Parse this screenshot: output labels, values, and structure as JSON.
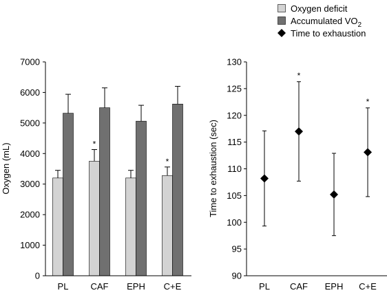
{
  "legend": {
    "items": [
      {
        "label": "Oxygen deficit",
        "marker": "light-gray-square",
        "color": "#d3d3d3"
      },
      {
        "label": "Accumulated VO",
        "subscript": "2",
        "marker": "dark-gray-square",
        "color": "#707070"
      },
      {
        "label": "Time to exhaustion",
        "marker": "black-diamond",
        "color": "#000000"
      }
    ]
  },
  "chart_data": [
    {
      "type": "bar",
      "ylabel": "Oxygen (mL)",
      "xlabel": "",
      "categories": [
        "PL",
        "CAF",
        "EPH",
        "C+E"
      ],
      "ylim": [
        0,
        7000
      ],
      "yticks": [
        0,
        1000,
        2000,
        3000,
        4000,
        5000,
        6000,
        7000
      ],
      "series": [
        {
          "name": "Oxygen deficit",
          "color": "#d3d3d3",
          "values": [
            3200,
            3750,
            3200,
            3280
          ],
          "errors": [
            250,
            380,
            250,
            280
          ]
        },
        {
          "name": "Accumulated VO2",
          "color": "#707070",
          "values": [
            5320,
            5500,
            5060,
            5620
          ],
          "errors": [
            620,
            650,
            520,
            580
          ]
        }
      ],
      "annotations": [
        {
          "category": "CAF",
          "series": "Oxygen deficit",
          "text": "*"
        },
        {
          "category": "C+E",
          "series": "Oxygen deficit",
          "text": "*"
        }
      ],
      "grid": false
    },
    {
      "type": "scatter",
      "ylabel": "Time to exhaustion (sec)",
      "xlabel": "",
      "categories": [
        "PL",
        "CAF",
        "EPH",
        "C+E"
      ],
      "ylim": [
        90,
        130
      ],
      "yticks": [
        90,
        95,
        100,
        105,
        110,
        115,
        120,
        125,
        130
      ],
      "series": [
        {
          "name": "Time to exhaustion",
          "color": "#000000",
          "values": [
            108.2,
            117.0,
            105.2,
            113.1
          ],
          "errors": [
            8.9,
            9.3,
            7.7,
            8.3
          ]
        }
      ],
      "annotations": [
        {
          "category": "CAF",
          "text": "*"
        },
        {
          "category": "C+E",
          "text": "*"
        }
      ],
      "grid": false
    }
  ]
}
